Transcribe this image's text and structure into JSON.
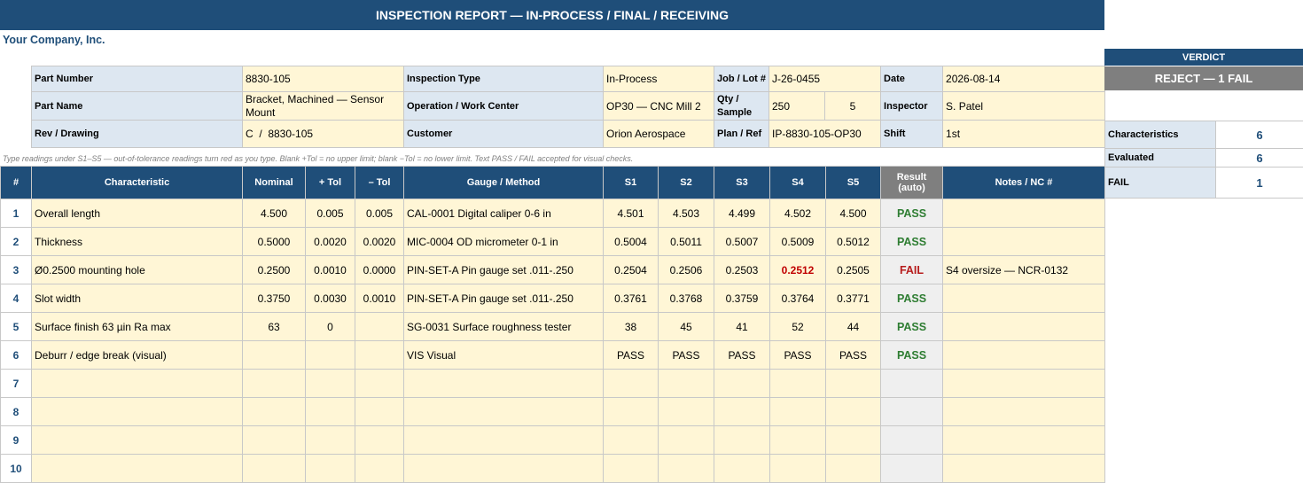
{
  "report": {
    "title": "INSPECTION REPORT — IN-PROCESS / FINAL / RECEIVING",
    "company": "Your Company, Inc.",
    "hint": "Type readings under S1–S5 — out-of-tolerance readings turn red as you type. Blank +Tol = no upper limit; blank −Tol = no lower limit. Text PASS / FAIL accepted for visual checks."
  },
  "header": {
    "part_number_label": "Part Number",
    "part_number": "8830-105",
    "inspection_type_label": "Inspection Type",
    "inspection_type": "In-Process",
    "job_lot_label": "Job / Lot #",
    "job_lot": "J-26-0455",
    "date_label": "Date",
    "date": "2026-08-14",
    "part_name_label": "Part Name",
    "part_name": "Bracket, Machined — Sensor Mount",
    "operation_label": "Operation / Work Center",
    "operation": "OP30 — CNC Mill 2",
    "qty_label": "Qty / Sample",
    "qty": "250",
    "sample": "5",
    "inspector_label": "Inspector",
    "inspector": "S. Patel",
    "rev_label": "Rev / Drawing",
    "rev": "C  /  8830-105",
    "customer_label": "Customer",
    "customer": "Orion Aerospace",
    "plan_label": "Plan / Ref",
    "plan": "IP-8830-105-OP30",
    "shift_label": "Shift",
    "shift": "1st"
  },
  "verdict": {
    "label": "VERDICT",
    "value": "REJECT — 1 FAIL",
    "characteristics_label": "Characteristics",
    "characteristics": "6",
    "evaluated_label": "Evaluated",
    "evaluated": "6",
    "fail_label": "FAIL",
    "fail": "1"
  },
  "columns": {
    "num": "#",
    "characteristic": "Characteristic",
    "nominal": "Nominal",
    "plus_tol": "+ Tol",
    "minus_tol": "– Tol",
    "gauge": "Gauge / Method",
    "s1": "S1",
    "s2": "S2",
    "s3": "S3",
    "s4": "S4",
    "s5": "S5",
    "result": "Result (auto)",
    "notes": "Notes / NC #"
  },
  "rows": [
    {
      "num": "1",
      "characteristic": "Overall length",
      "nominal": "4.500",
      "plus_tol": "0.005",
      "minus_tol": "0.005",
      "gauge": "CAL-0001 Digital caliper 0-6 in",
      "s1": "4.501",
      "s2": "4.503",
      "s3": "4.499",
      "s4": "4.502",
      "s5": "4.500",
      "result": "PASS",
      "notes": ""
    },
    {
      "num": "2",
      "characteristic": "Thickness",
      "nominal": "0.5000",
      "plus_tol": "0.0020",
      "minus_tol": "0.0020",
      "gauge": "MIC-0004 OD micrometer 0-1 in",
      "s1": "0.5004",
      "s2": "0.5011",
      "s3": "0.5007",
      "s4": "0.5009",
      "s5": "0.5012",
      "result": "PASS",
      "notes": ""
    },
    {
      "num": "3",
      "characteristic": "Ø0.2500 mounting hole",
      "nominal": "0.2500",
      "plus_tol": "0.0010",
      "minus_tol": "0.0000",
      "gauge": "PIN-SET-A Pin gauge set .011-.250",
      "s1": "0.2504",
      "s2": "0.2506",
      "s3": "0.2503",
      "s4": "0.2512",
      "s5": "0.2505",
      "result": "FAIL",
      "notes": "S4 oversize — NCR-0132"
    },
    {
      "num": "4",
      "characteristic": "Slot width",
      "nominal": "0.3750",
      "plus_tol": "0.0030",
      "minus_tol": "0.0010",
      "gauge": "PIN-SET-A Pin gauge set .011-.250",
      "s1": "0.3761",
      "s2": "0.3768",
      "s3": "0.3759",
      "s4": "0.3764",
      "s5": "0.3771",
      "result": "PASS",
      "notes": ""
    },
    {
      "num": "5",
      "characteristic": "Surface finish 63 µin Ra max",
      "nominal": "63",
      "plus_tol": "0",
      "minus_tol": "",
      "gauge": "SG-0031 Surface roughness tester",
      "s1": "38",
      "s2": "45",
      "s3": "41",
      "s4": "52",
      "s5": "44",
      "result": "PASS",
      "notes": ""
    },
    {
      "num": "6",
      "characteristic": "Deburr / edge break (visual)",
      "nominal": "",
      "plus_tol": "",
      "minus_tol": "",
      "gauge": "VIS Visual",
      "s1": "PASS",
      "s2": "PASS",
      "s3": "PASS",
      "s4": "PASS",
      "s5": "PASS",
      "result": "PASS",
      "notes": ""
    },
    {
      "num": "7",
      "characteristic": "",
      "nominal": "",
      "plus_tol": "",
      "minus_tol": "",
      "gauge": "",
      "s1": "",
      "s2": "",
      "s3": "",
      "s4": "",
      "s5": "",
      "result": "",
      "notes": ""
    },
    {
      "num": "8",
      "characteristic": "",
      "nominal": "",
      "plus_tol": "",
      "minus_tol": "",
      "gauge": "",
      "s1": "",
      "s2": "",
      "s3": "",
      "s4": "",
      "s5": "",
      "result": "",
      "notes": ""
    },
    {
      "num": "9",
      "characteristic": "",
      "nominal": "",
      "plus_tol": "",
      "minus_tol": "",
      "gauge": "",
      "s1": "",
      "s2": "",
      "s3": "",
      "s4": "",
      "s5": "",
      "result": "",
      "notes": ""
    },
    {
      "num": "10",
      "characteristic": "",
      "nominal": "",
      "plus_tol": "",
      "minus_tol": "",
      "gauge": "",
      "s1": "",
      "s2": "",
      "s3": "",
      "s4": "",
      "s5": "",
      "result": "",
      "notes": ""
    }
  ]
}
